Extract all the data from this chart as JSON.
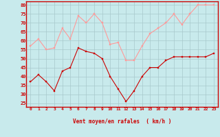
{
  "x": [
    0,
    1,
    2,
    3,
    4,
    5,
    6,
    7,
    8,
    9,
    10,
    11,
    12,
    13,
    14,
    15,
    16,
    17,
    18,
    19,
    20,
    21,
    22,
    23
  ],
  "wind_avg": [
    37,
    41,
    37,
    32,
    43,
    45,
    56,
    54,
    53,
    50,
    40,
    33,
    26,
    32,
    40,
    45,
    45,
    49,
    51,
    51,
    51,
    51,
    51,
    53
  ],
  "wind_gust": [
    57,
    61,
    55,
    56,
    67,
    61,
    74,
    70,
    75,
    70,
    58,
    59,
    49,
    49,
    57,
    64,
    67,
    70,
    75,
    69,
    75,
    80,
    80,
    80
  ],
  "avg_color": "#cc0000",
  "gust_color": "#ff9999",
  "bg_color": "#c8eaec",
  "grid_color": "#a8c8cc",
  "xlabel": "Vent moyen/en rafales  ( km/h )",
  "xlabel_color": "#cc0000",
  "tick_color": "#cc0000",
  "ylim": [
    23,
    82
  ],
  "yticks": [
    25,
    30,
    35,
    40,
    45,
    50,
    55,
    60,
    65,
    70,
    75,
    80
  ],
  "xticks": [
    0,
    1,
    2,
    3,
    4,
    5,
    6,
    7,
    8,
    9,
    10,
    11,
    12,
    13,
    14,
    15,
    16,
    17,
    18,
    19,
    20,
    21,
    22,
    23
  ]
}
